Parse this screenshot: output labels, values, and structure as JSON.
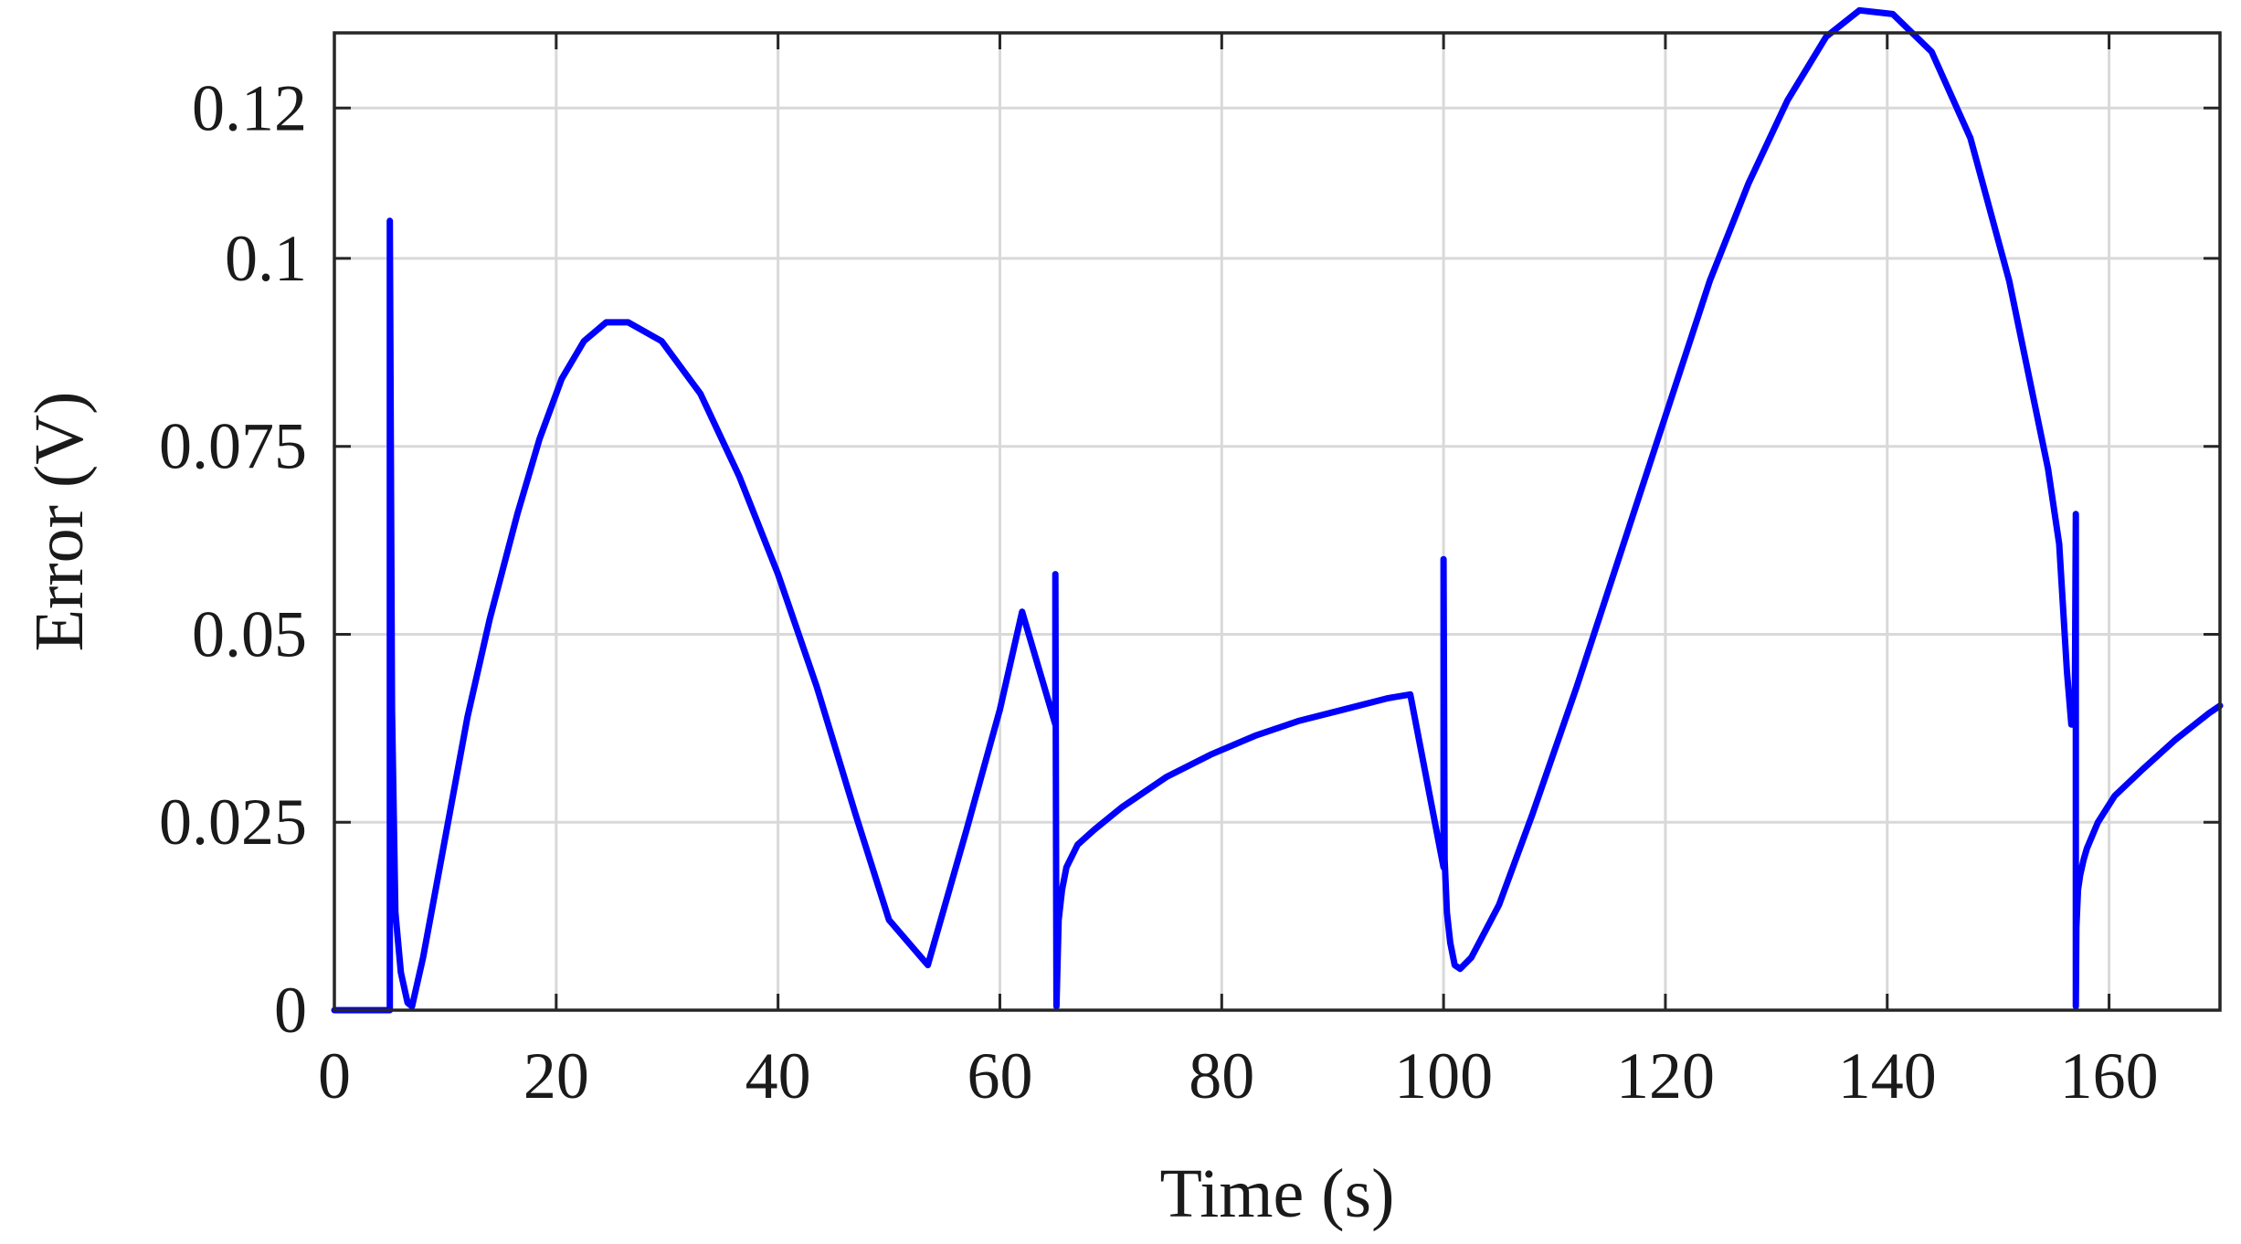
{
  "chart_data": {
    "type": "line",
    "title": "",
    "xlabel": "Time (s)",
    "ylabel": "Error (V)",
    "xlim": [
      0,
      170
    ],
    "ylim": [
      0,
      0.13
    ],
    "x_ticks": [
      0,
      20,
      40,
      60,
      80,
      100,
      120,
      140,
      160
    ],
    "x_tick_labels": [
      "0",
      "20",
      "40",
      "60",
      "80",
      "100",
      "120",
      "140",
      "160"
    ],
    "y_ticks": [
      0,
      0.025,
      0.05,
      0.075,
      0.1,
      0.12
    ],
    "y_tick_labels": [
      "0",
      "0.025",
      "0.05",
      "0.075",
      "0.1",
      "0.12"
    ],
    "grid": true,
    "legend": "none",
    "series": [
      {
        "color": "#0000ff",
        "x": [
          0,
          5.0,
          5.0,
          5.2,
          5.5,
          6.0,
          6.6,
          7.0,
          8.0,
          9.0,
          10.5,
          12.0,
          14.0,
          16.5,
          18.5,
          20.5,
          22.5,
          24.5,
          26.5,
          29.5,
          33.0,
          36.5,
          40.0,
          43.5,
          47.0,
          50.0,
          53.5,
          57.0,
          60.0,
          62.0,
          65.0,
          65.0,
          65.1,
          65.3,
          65.6,
          66.0,
          67.0,
          68.5,
          71.0,
          75.0,
          79.0,
          83.0,
          87.0,
          91.0,
          95.0,
          97.0,
          100.0,
          100.0,
          100.1,
          100.3,
          100.6,
          101.0,
          101.5,
          102.5,
          105.0,
          108.0,
          112.0,
          116.0,
          120.0,
          124.0,
          127.5,
          131.0,
          134.5,
          137.5,
          140.5,
          144.0,
          147.5,
          151.0,
          154.5,
          155.5,
          156.2,
          156.6,
          156.9,
          157.0,
          157.0,
          157.05,
          157.2,
          157.4,
          157.7,
          158.0,
          159.0,
          160.5,
          163.0,
          166.0,
          169.0,
          170.0
        ],
        "y": [
          0,
          0,
          0.105,
          0.04,
          0.013,
          0.005,
          0.001,
          0.0005,
          0.007,
          0.015,
          0.027,
          0.039,
          0.052,
          0.066,
          0.076,
          0.084,
          0.089,
          0.0915,
          0.0915,
          0.089,
          0.082,
          0.071,
          0.058,
          0.043,
          0.026,
          0.012,
          0.006,
          0.024,
          0.04,
          0.053,
          0.038,
          0.058,
          0.0005,
          0.012,
          0.016,
          0.019,
          0.022,
          0.024,
          0.027,
          0.031,
          0.034,
          0.0365,
          0.0385,
          0.04,
          0.0415,
          0.042,
          0.019,
          0.06,
          0.02,
          0.013,
          0.009,
          0.006,
          0.0055,
          0.007,
          0.014,
          0.026,
          0.043,
          0.061,
          0.079,
          0.097,
          0.11,
          0.121,
          0.1295,
          0.133,
          0.1325,
          0.1275,
          0.116,
          0.097,
          0.072,
          0.062,
          0.045,
          0.038,
          0.038,
          0.066,
          0.0005,
          0.011,
          0.016,
          0.018,
          0.02,
          0.0215,
          0.025,
          0.0285,
          0.032,
          0.036,
          0.0395,
          0.0405
        ]
      }
    ]
  }
}
